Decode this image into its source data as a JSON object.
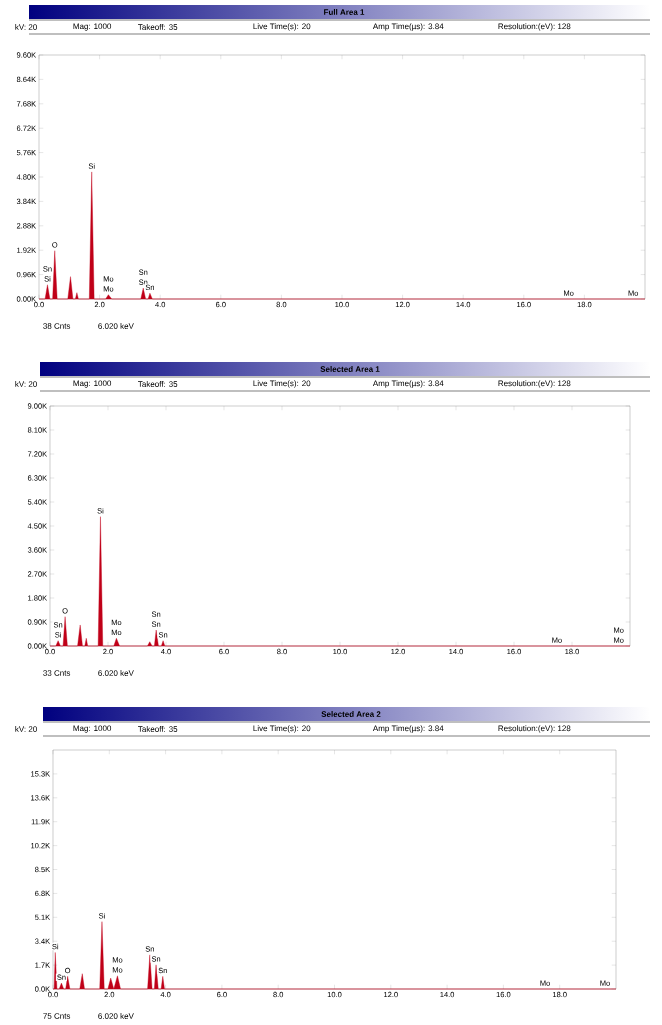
{
  "chart_data": [
    {
      "type": "area",
      "title": "Full Area 1",
      "annotations": [
        "kV: 20",
        "Mag: 1000",
        "Takeoff: 35",
        "Live Time(s): 20",
        "Amp Time(µs): 3.84",
        "Resolution:(eV): 128",
        "38 Cnts",
        "6.020 keV",
        {
          "text": "Si",
          "x": 0.28,
          "y": 560
        },
        {
          "text": "Sn",
          "x": 0.28,
          "y": 560
        },
        {
          "text": "O",
          "x": 0.52,
          "y": 1900
        },
        {
          "text": "Si",
          "x": 1.74,
          "y": 5000
        },
        {
          "text": "Mo",
          "x": 2.29,
          "y": 170
        },
        {
          "text": "Mo",
          "x": 2.29,
          "y": 170
        },
        {
          "text": "Sn",
          "x": 3.44,
          "y": 430
        },
        {
          "text": "Sn",
          "x": 3.44,
          "y": 430
        },
        {
          "text": "Sn",
          "x": 3.66,
          "y": 230
        },
        {
          "text": "Mo",
          "x": 17.48,
          "y": 0
        },
        {
          "text": "Mo",
          "x": 19.61,
          "y": 0
        }
      ],
      "series": [
        {
          "color": "#c00018",
          "x": [
            0.0,
            0.2,
            0.28,
            0.36,
            0.45,
            0.52,
            0.6,
            0.95,
            1.04,
            1.12,
            1.2,
            1.25,
            1.3,
            1.66,
            1.74,
            1.82,
            2.2,
            2.29,
            2.4,
            3.36,
            3.44,
            3.52,
            3.6,
            3.66,
            3.74,
            17.48,
            19.61,
            20.0
          ],
          "values": [
            0,
            0,
            560,
            0,
            0,
            1900,
            0,
            0,
            880,
            0,
            0,
            250,
            0,
            0,
            5000,
            0,
            0,
            170,
            0,
            0,
            430,
            0,
            0,
            230,
            0,
            0,
            0,
            0
          ]
        }
      ],
      "xlim": [
        0,
        20
      ],
      "ylim": [
        0,
        9600
      ],
      "xticks": [
        {
          "value": 0,
          "label": "0.0"
        },
        {
          "value": 2,
          "label": "2.0"
        },
        {
          "value": 4,
          "label": "4.0"
        },
        {
          "value": 6,
          "label": "6.0"
        },
        {
          "value": 8,
          "label": "8.0"
        },
        {
          "value": 10,
          "label": "10.0"
        },
        {
          "value": 12,
          "label": "12.0"
        },
        {
          "value": 14,
          "label": "14.0"
        },
        {
          "value": 16,
          "label": "16.0"
        },
        {
          "value": 18,
          "label": "18.0"
        }
      ],
      "yticks": [
        {
          "value": 0,
          "label": "0.00K"
        },
        {
          "value": 960,
          "label": "0.96K"
        },
        {
          "value": 1920,
          "label": "1.92K"
        },
        {
          "value": 2880,
          "label": "2.88K"
        },
        {
          "value": 3840,
          "label": "3.84K"
        },
        {
          "value": 4800,
          "label": "4.80K"
        },
        {
          "value": 5760,
          "label": "5.76K"
        },
        {
          "value": 6720,
          "label": "6.72K"
        },
        {
          "value": 7680,
          "label": "7.68K"
        },
        {
          "value": 8640,
          "label": "8.64K"
        },
        {
          "value": 9600,
          "label": "9.60K"
        }
      ]
    },
    {
      "type": "area",
      "title": "Selected Area 1",
      "annotations": [
        "kV: 20",
        "Mag: 1000",
        "Takeoff: 35",
        "Live Time(s): 20",
        "Amp Time(µs): 3.84",
        "Resolution:(eV): 128",
        "33 Cnts",
        "6.020 keV",
        {
          "text": "Si",
          "x": 0.28,
          "y": 200
        },
        {
          "text": "Sn",
          "x": 0.28,
          "y": 200
        },
        {
          "text": "O",
          "x": 0.52,
          "y": 1100
        },
        {
          "text": "Si",
          "x": 1.74,
          "y": 4850
        },
        {
          "text": "Mo",
          "x": 2.29,
          "y": 290
        },
        {
          "text": "Mo",
          "x": 2.29,
          "y": 290
        },
        {
          "text": "Sn",
          "x": 3.66,
          "y": 600
        },
        {
          "text": "Sn",
          "x": 3.66,
          "y": 600
        },
        {
          "text": "Sn",
          "x": 3.9,
          "y": 200
        },
        {
          "text": "Mo",
          "x": 17.48,
          "y": 0
        },
        {
          "text": "Mo",
          "x": 19.61,
          "y": 0
        },
        {
          "text": "Mo",
          "x": 19.61,
          "y": 0
        }
      ],
      "series": [
        {
          "color": "#c00018",
          "x": [
            0.0,
            0.2,
            0.28,
            0.36,
            0.45,
            0.52,
            0.6,
            0.95,
            1.04,
            1.12,
            1.2,
            1.25,
            1.3,
            1.66,
            1.74,
            1.82,
            2.2,
            2.29,
            2.4,
            3.36,
            3.44,
            3.52,
            3.6,
            3.66,
            3.74,
            3.84,
            3.9,
            3.96,
            17.48,
            19.61,
            20.0
          ],
          "values": [
            0,
            0,
            200,
            0,
            0,
            1100,
            0,
            0,
            790,
            0,
            0,
            290,
            0,
            0,
            4850,
            0,
            0,
            290,
            0,
            0,
            160,
            0,
            0,
            600,
            0,
            0,
            200,
            0,
            0,
            0,
            0
          ]
        }
      ],
      "xlim": [
        0,
        20
      ],
      "ylim": [
        0,
        9000
      ],
      "xticks": [
        {
          "value": 0,
          "label": "0.0"
        },
        {
          "value": 2,
          "label": "2.0"
        },
        {
          "value": 4,
          "label": "4.0"
        },
        {
          "value": 6,
          "label": "6.0"
        },
        {
          "value": 8,
          "label": "8.0"
        },
        {
          "value": 10,
          "label": "10.0"
        },
        {
          "value": 12,
          "label": "12.0"
        },
        {
          "value": 14,
          "label": "14.0"
        },
        {
          "value": 16,
          "label": "16.0"
        },
        {
          "value": 18,
          "label": "18.0"
        }
      ],
      "yticks": [
        {
          "value": 0,
          "label": "0.00K"
        },
        {
          "value": 900,
          "label": "0.90K"
        },
        {
          "value": 1800,
          "label": "1.80K"
        },
        {
          "value": 2700,
          "label": "2.70K"
        },
        {
          "value": 3600,
          "label": "3.60K"
        },
        {
          "value": 4500,
          "label": "4.50K"
        },
        {
          "value": 5400,
          "label": "5.40K"
        },
        {
          "value": 6300,
          "label": "6.30K"
        },
        {
          "value": 7200,
          "label": "7.20K"
        },
        {
          "value": 8100,
          "label": "8.10K"
        },
        {
          "value": 9000,
          "label": "9.00K"
        }
      ]
    },
    {
      "type": "area",
      "title": "Selected Area 2",
      "annotations": [
        "kV: 20",
        "Mag: 1000",
        "Takeoff: 35",
        "Live Time(s): 20",
        "Amp Time(µs): 3.84",
        "Resolution:(eV): 128",
        "75 Cnts",
        "6.020 keV",
        {
          "text": "Si",
          "x": 0.08,
          "y": 2600
        },
        {
          "text": "Sn",
          "x": 0.3,
          "y": 420
        },
        {
          "text": "O",
          "x": 0.52,
          "y": 900
        },
        {
          "text": "Si",
          "x": 1.74,
          "y": 4790
        },
        {
          "text": "Mo",
          "x": 2.29,
          "y": 940
        },
        {
          "text": "Mo",
          "x": 2.29,
          "y": 940
        },
        {
          "text": "Sn",
          "x": 3.44,
          "y": 2430
        },
        {
          "text": "Sn",
          "x": 3.66,
          "y": 1720
        },
        {
          "text": "Sn",
          "x": 3.9,
          "y": 900
        },
        {
          "text": "Mo",
          "x": 17.48,
          "y": 0
        },
        {
          "text": "Mo",
          "x": 19.61,
          "y": 0
        }
      ],
      "series": [
        {
          "color": "#c00018",
          "x": [
            0.0,
            0.04,
            0.08,
            0.14,
            0.22,
            0.3,
            0.38,
            0.45,
            0.52,
            0.6,
            0.95,
            1.04,
            1.12,
            1.66,
            1.74,
            1.82,
            1.95,
            2.05,
            2.16,
            2.29,
            2.4,
            3.36,
            3.44,
            3.52,
            3.6,
            3.66,
            3.74,
            3.84,
            3.9,
            3.96,
            17.48,
            19.61,
            20.0
          ],
          "values": [
            0,
            0,
            2600,
            0,
            0,
            420,
            0,
            0,
            900,
            0,
            0,
            1090,
            0,
            0,
            4790,
            0,
            0,
            780,
            0,
            940,
            0,
            0,
            2430,
            0,
            0,
            1720,
            0,
            0,
            900,
            0,
            0,
            0,
            0
          ]
        }
      ],
      "xlim": [
        0,
        20
      ],
      "ylim": [
        0,
        17000
      ],
      "xticks": [
        {
          "value": 0,
          "label": "0.0"
        },
        {
          "value": 2,
          "label": "2.0"
        },
        {
          "value": 4,
          "label": "4.0"
        },
        {
          "value": 6,
          "label": "6.0"
        },
        {
          "value": 8,
          "label": "8.0"
        },
        {
          "value": 10,
          "label": "10.0"
        },
        {
          "value": 12,
          "label": "12.0"
        },
        {
          "value": 14,
          "label": "14.0"
        },
        {
          "value": 16,
          "label": "16.0"
        },
        {
          "value": 18,
          "label": "18.0"
        }
      ],
      "yticks": [
        {
          "value": 0,
          "label": "0.0K"
        },
        {
          "value": 1700,
          "label": "1.7K"
        },
        {
          "value": 3400,
          "label": "3.4K"
        },
        {
          "value": 5100,
          "label": "5.1K"
        },
        {
          "value": 6800,
          "label": "6.8K"
        },
        {
          "value": 8500,
          "label": "8.5K"
        },
        {
          "value": 10200,
          "label": "10.2K"
        },
        {
          "value": 11900,
          "label": "11.9K"
        },
        {
          "value": 13600,
          "label": "13.6K"
        },
        {
          "value": 15300,
          "label": "15.3K"
        }
      ]
    }
  ]
}
